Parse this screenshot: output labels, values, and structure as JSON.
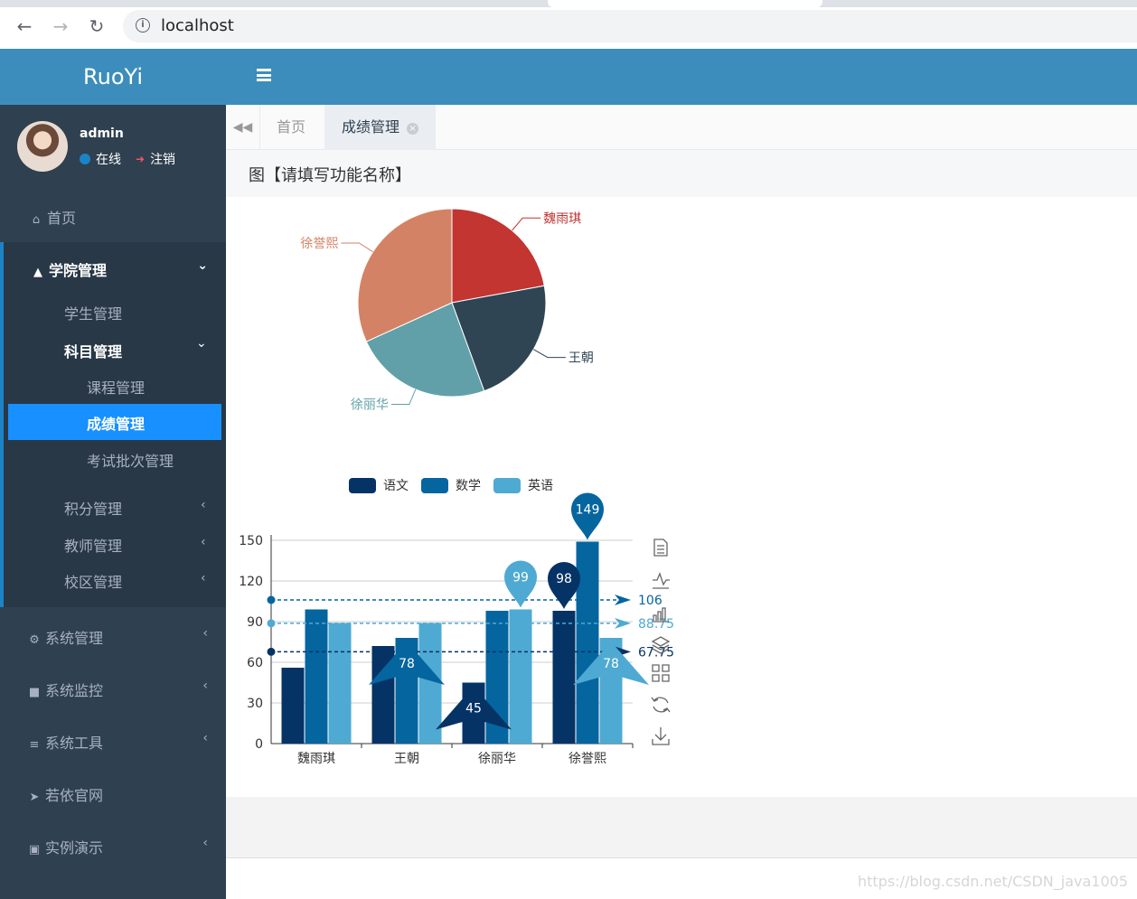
{
  "browser": {
    "url": "localhost"
  },
  "app": {
    "logo": "RuoYi"
  },
  "user": {
    "name": "admin",
    "status": "在线",
    "logout": "注销"
  },
  "sidebar": {
    "home": "首页",
    "college": "学院管理",
    "student": "学生管理",
    "subject": "科目管理",
    "course": "课程管理",
    "score": "成绩管理",
    "exam_batch": "考试批次管理",
    "points": "积分管理",
    "teacher": "教师管理",
    "campus": "校区管理",
    "system": "系统管理",
    "monitor": "系统监控",
    "tools": "系统工具",
    "ruoyi_site": "若依官网",
    "demo": "实例演示"
  },
  "tabs": {
    "home": "首页",
    "score": "成绩管理"
  },
  "content": {
    "title": "图【请填写功能名称】"
  },
  "watermark": "https://blog.csdn.net/CSDN_java1005",
  "colors": {
    "sidebar": "#2f4050",
    "header": "#3c8dbc",
    "active": "#1890ff"
  },
  "chart_data": [
    {
      "type": "pie",
      "slices": [
        {
          "label": "魏雨琪",
          "value": 226,
          "color": "#c23531"
        },
        {
          "label": "王朝",
          "value": 228,
          "color": "#2f4554"
        },
        {
          "label": "徐丽华",
          "value": 243,
          "color": "#61a0a8"
        },
        {
          "label": "徐誉熙",
          "value": 325,
          "color": "#d48265"
        }
      ]
    },
    {
      "type": "bar",
      "categories": [
        "魏雨琪",
        "王朝",
        "徐丽华",
        "徐誉熙"
      ],
      "series": [
        {
          "name": "语文",
          "values": [
            56,
            72,
            45,
            98
          ],
          "color": "#063365",
          "max": "98",
          "min": "45",
          "avg": "67.75"
        },
        {
          "name": "数学",
          "values": [
            99,
            78,
            98,
            149
          ],
          "color": "#05659f",
          "max": "149",
          "min": "78",
          "avg": "106"
        },
        {
          "name": "英语",
          "values": [
            89,
            89,
            99,
            78
          ],
          "color": "#4eaad2",
          "max": "99",
          "min": "78",
          "avg": "88.75"
        }
      ],
      "ylim": [
        0,
        150
      ],
      "yticks": [
        "0",
        "30",
        "60",
        "90",
        "120",
        "150"
      ],
      "legend": "top",
      "toolbox": [
        "data-view-icon",
        "line-chart-icon",
        "bar-chart-icon",
        "stack-icon",
        "tiled-icon",
        "restore-icon",
        "save-image-icon"
      ]
    }
  ]
}
